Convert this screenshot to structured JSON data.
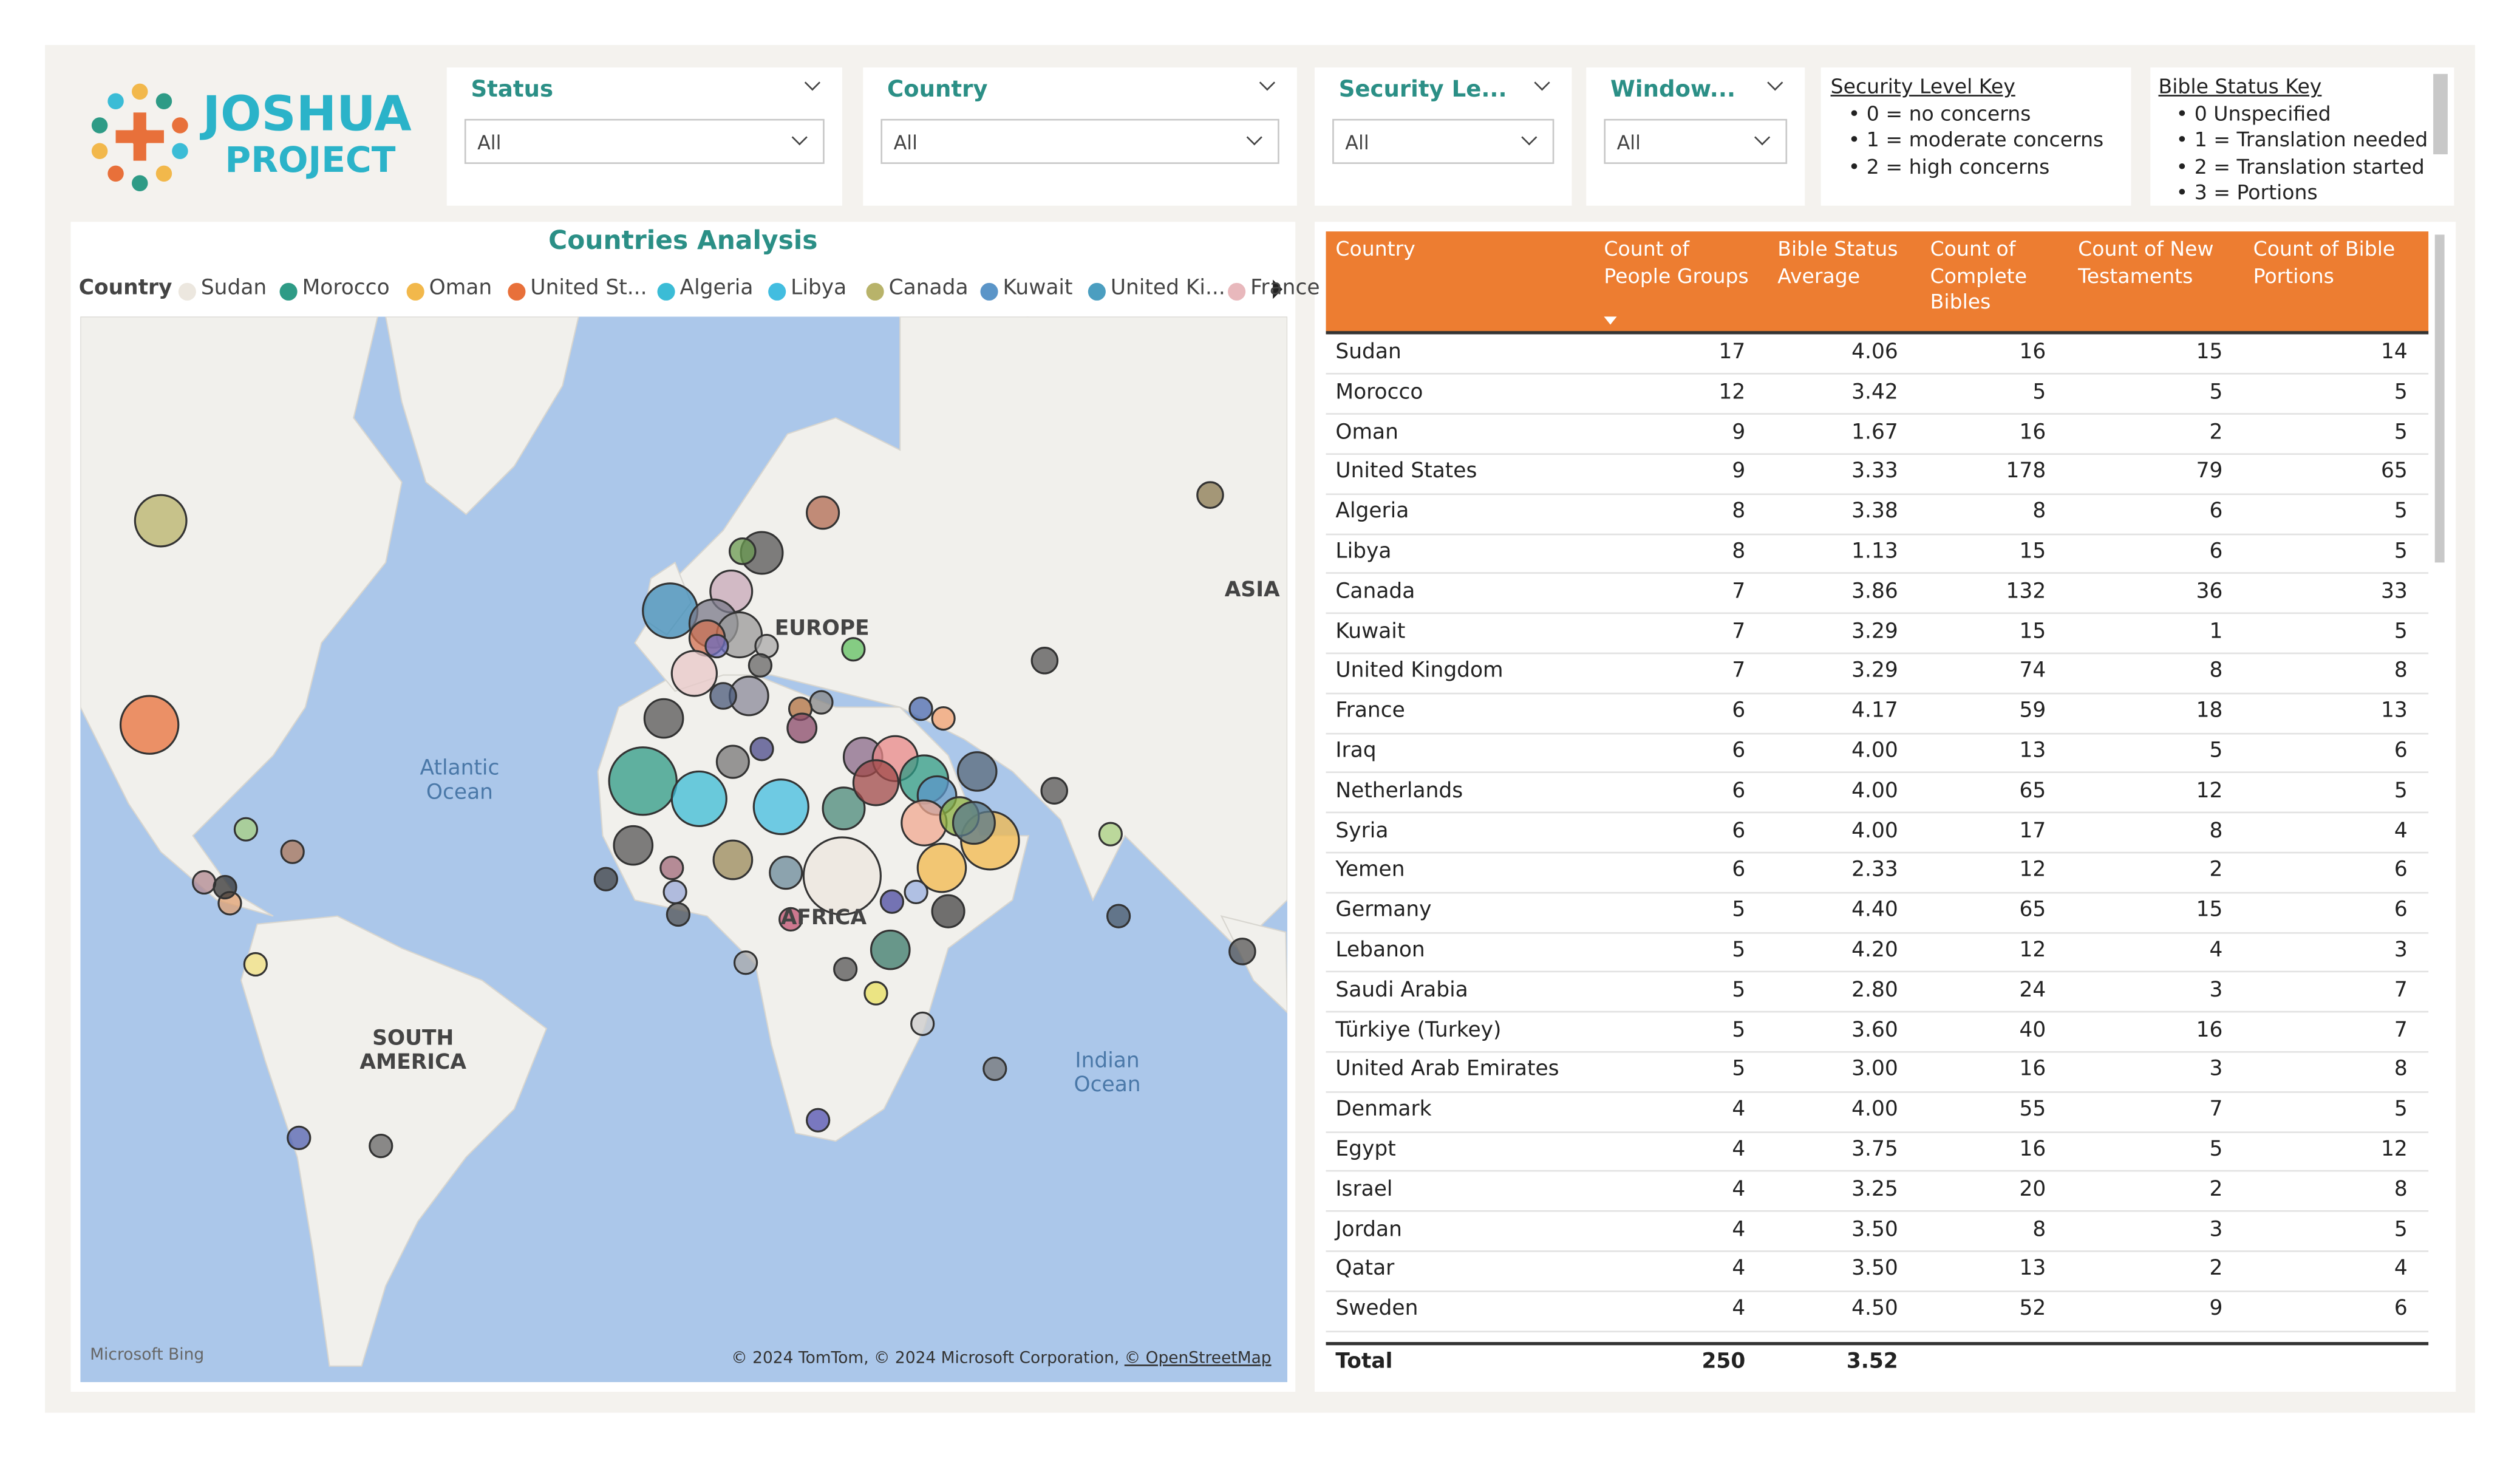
{
  "logo": {
    "line1": "JOSHUA",
    "line2": "PROJECT"
  },
  "filters": [
    {
      "label": "Status",
      "value": "All"
    },
    {
      "label": "Country",
      "value": "All"
    },
    {
      "label": "Security Le...",
      "value": "All"
    },
    {
      "label": "Window...",
      "value": "All"
    }
  ],
  "security_key": {
    "title": "Security Level Key",
    "items": [
      "0 = no concerns",
      "1 = moderate concerns",
      "2 = high concerns"
    ]
  },
  "bible_key": {
    "title": "Bible Status Key",
    "items": [
      "0 Unspecified",
      "1 = Translation needed",
      "2 = Translation started",
      "3 = Portions"
    ]
  },
  "map": {
    "title": "Countries Analysis",
    "legend_title": "Country",
    "legend": [
      {
        "name": "Sudan",
        "color": "#ece7df"
      },
      {
        "name": "Morocco",
        "color": "#2e9b86"
      },
      {
        "name": "Oman",
        "color": "#f2b84b"
      },
      {
        "name": "United St...",
        "color": "#e8703a"
      },
      {
        "name": "Algeria",
        "color": "#3bbcd6"
      },
      {
        "name": "Libya",
        "color": "#42bde0"
      },
      {
        "name": "Canada",
        "color": "#b8b36a"
      },
      {
        "name": "Kuwait",
        "color": "#5b95c8"
      },
      {
        "name": "United Ki...",
        "color": "#4b9ec0"
      },
      {
        "name": "France",
        "color": "#e8b8bc"
      }
    ],
    "labels": [
      "EUROPE",
      "ASIA",
      "AFRICA",
      "SOUTH AMERICA",
      "Atlantic Ocean",
      "Indian Ocean"
    ],
    "credit": "Microsoft Bing",
    "copyright": "© 2024 TomTom, © 2024 Microsoft Corporation,",
    "copyright_link": "© OpenStreetMap"
  },
  "table": {
    "columns": [
      "Country",
      "Count of People Groups",
      "Bible Status Average",
      "Count of Complete Bibles",
      "Count of New Testaments",
      "Count of Bible Portions"
    ],
    "rows": [
      [
        "Sudan",
        "17",
        "4.06",
        "16",
        "15",
        "14"
      ],
      [
        "Morocco",
        "12",
        "3.42",
        "5",
        "5",
        "5"
      ],
      [
        "Oman",
        "9",
        "1.67",
        "16",
        "2",
        "5"
      ],
      [
        "United States",
        "9",
        "3.33",
        "178",
        "79",
        "65"
      ],
      [
        "Algeria",
        "8",
        "3.38",
        "8",
        "6",
        "5"
      ],
      [
        "Libya",
        "8",
        "1.13",
        "15",
        "6",
        "5"
      ],
      [
        "Canada",
        "7",
        "3.86",
        "132",
        "36",
        "33"
      ],
      [
        "Kuwait",
        "7",
        "3.29",
        "15",
        "1",
        "5"
      ],
      [
        "United Kingdom",
        "7",
        "3.29",
        "74",
        "8",
        "8"
      ],
      [
        "France",
        "6",
        "4.17",
        "59",
        "18",
        "13"
      ],
      [
        "Iraq",
        "6",
        "4.00",
        "13",
        "5",
        "6"
      ],
      [
        "Netherlands",
        "6",
        "4.00",
        "65",
        "12",
        "5"
      ],
      [
        "Syria",
        "6",
        "4.00",
        "17",
        "8",
        "4"
      ],
      [
        "Yemen",
        "6",
        "2.33",
        "12",
        "2",
        "6"
      ],
      [
        "Germany",
        "5",
        "4.40",
        "65",
        "15",
        "6"
      ],
      [
        "Lebanon",
        "5",
        "4.20",
        "12",
        "4",
        "3"
      ],
      [
        "Saudi Arabia",
        "5",
        "2.80",
        "24",
        "3",
        "7"
      ],
      [
        "Türkiye (Turkey)",
        "5",
        "3.60",
        "40",
        "16",
        "7"
      ],
      [
        "United Arab Emirates",
        "5",
        "3.00",
        "16",
        "3",
        "8"
      ],
      [
        "Denmark",
        "4",
        "4.00",
        "55",
        "7",
        "5"
      ],
      [
        "Egypt",
        "4",
        "3.75",
        "16",
        "5",
        "12"
      ],
      [
        "Israel",
        "4",
        "3.25",
        "20",
        "2",
        "8"
      ],
      [
        "Jordan",
        "4",
        "3.50",
        "8",
        "3",
        "5"
      ],
      [
        "Qatar",
        "4",
        "3.50",
        "13",
        "2",
        "4"
      ],
      [
        "Sweden",
        "4",
        "4.50",
        "52",
        "9",
        "6"
      ]
    ],
    "total": [
      "Total",
      "250",
      "3.52"
    ]
  }
}
